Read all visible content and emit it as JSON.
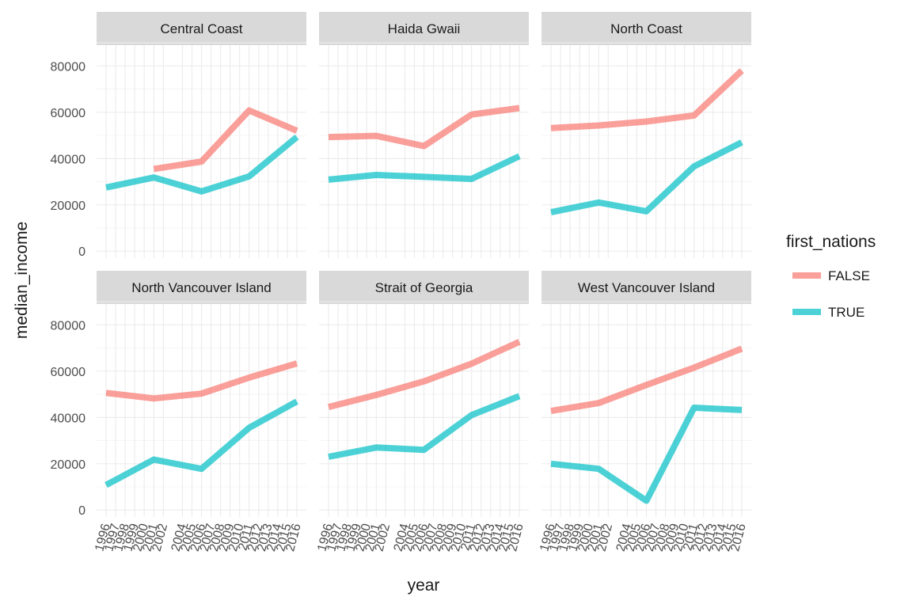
{
  "chart_data": {
    "type": "line",
    "facet_type": "wrap",
    "xlabel": "year",
    "ylabel": "median_income",
    "x_ticks": [
      "1996",
      "1997",
      "1998",
      "1999",
      "2000",
      "2001",
      "2002",
      "2004",
      "2005",
      "2006",
      "2007",
      "2008",
      "2009",
      "2010",
      "2011",
      "2012",
      "2013",
      "2014",
      "2015",
      "2016"
    ],
    "y_ticks": [
      0,
      20000,
      40000,
      60000,
      80000
    ],
    "y_tick_labels": [
      "0",
      "20000",
      "40000",
      "60000",
      "80000"
    ],
    "ylim": [
      -3000,
      89000
    ],
    "legend": {
      "title": "first_nations",
      "placement": "right",
      "entries": [
        {
          "label": "FALSE",
          "color": "#F8766D"
        },
        {
          "label": "TRUE",
          "color": "#00BFC4"
        }
      ]
    },
    "line_opacity": 0.7,
    "grid": true,
    "facets": [
      {
        "title": "Central Coast",
        "series": [
          {
            "group": "FALSE",
            "x": [
              2001,
              2006,
              2011,
              2016
            ],
            "y": [
              35500,
              38700,
              60800,
              52000
            ]
          },
          {
            "group": "TRUE",
            "x": [
              1996,
              2001,
              2006,
              2011,
              2016
            ],
            "y": [
              27500,
              31800,
              25800,
              32300,
              49300
            ]
          }
        ]
      },
      {
        "title": "Haida Gwaii",
        "series": [
          {
            "group": "FALSE",
            "x": [
              1996,
              2001,
              2006,
              2011,
              2016
            ],
            "y": [
              49300,
              49800,
              45400,
              59000,
              61800
            ]
          },
          {
            "group": "TRUE",
            "x": [
              1996,
              2001,
              2006,
              2011,
              2016
            ],
            "y": [
              30900,
              32900,
              32100,
              31200,
              41000
            ]
          }
        ]
      },
      {
        "title": "North Coast",
        "series": [
          {
            "group": "FALSE",
            "x": [
              1996,
              2001,
              2006,
              2011,
              2016
            ],
            "y": [
              53200,
              54300,
              56000,
              58600,
              78000
            ]
          },
          {
            "group": "TRUE",
            "x": [
              1996,
              2001,
              2006,
              2011,
              2016
            ],
            "y": [
              16800,
              21000,
              17200,
              36600,
              47000
            ]
          }
        ]
      },
      {
        "title": "North Vancouver Island",
        "series": [
          {
            "group": "FALSE",
            "x": [
              1996,
              2001,
              2006,
              2011,
              2016
            ],
            "y": [
              50600,
              48200,
              50300,
              57200,
              63300
            ]
          },
          {
            "group": "TRUE",
            "x": [
              1996,
              2001,
              2006,
              2011,
              2016
            ],
            "y": [
              10800,
              21800,
              17800,
              35500,
              46900
            ]
          }
        ]
      },
      {
        "title": "Strait of Georgia",
        "series": [
          {
            "group": "FALSE",
            "x": [
              1996,
              2001,
              2006,
              2011,
              2016
            ],
            "y": [
              44500,
              49700,
              55600,
              63200,
              72700
            ]
          },
          {
            "group": "TRUE",
            "x": [
              1996,
              2001,
              2006,
              2011,
              2016
            ],
            "y": [
              23000,
              27000,
              26000,
              41000,
              49200
            ]
          }
        ]
      },
      {
        "title": "West Vancouver Island",
        "series": [
          {
            "group": "FALSE",
            "x": [
              1996,
              2001,
              2006,
              2011,
              2016
            ],
            "y": [
              42800,
              46200,
              54000,
              61500,
              69700
            ]
          },
          {
            "group": "TRUE",
            "x": [
              1996,
              2001,
              2006,
              2011,
              2016
            ],
            "y": [
              20000,
              17800,
              4000,
              44200,
              43200
            ]
          }
        ]
      }
    ]
  }
}
